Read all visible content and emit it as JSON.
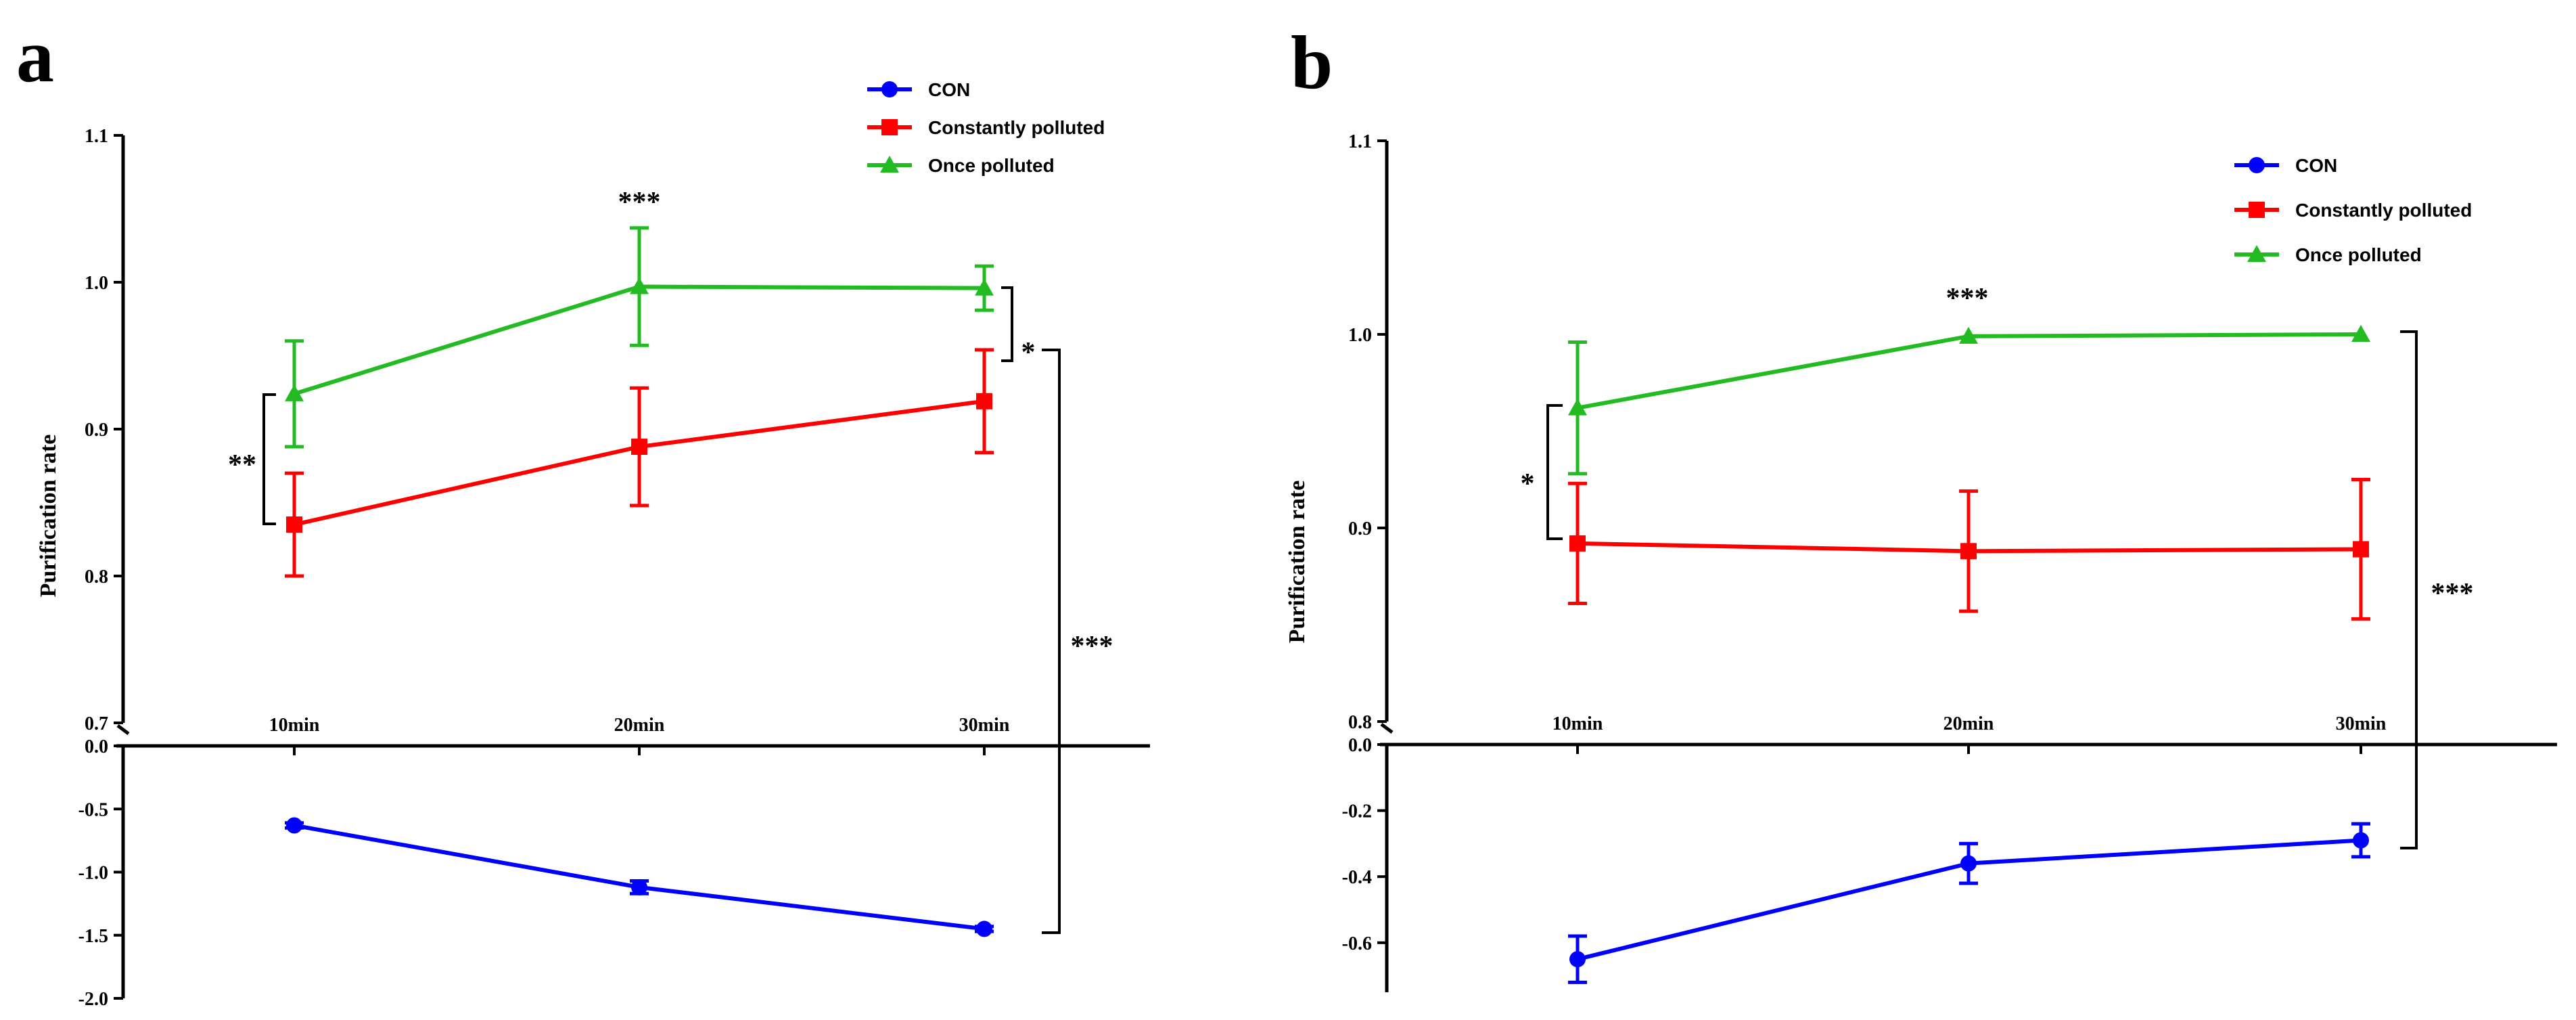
{
  "chart_data": [
    {
      "type": "line",
      "panel_label": "a",
      "title": "",
      "xlabel": "",
      "ylabel": "Purification rate",
      "categories": [
        "10min",
        "20min",
        "30min"
      ],
      "upper_axis": {
        "ylim": [
          0.7,
          1.1
        ],
        "ticks": [
          0.7,
          0.8,
          0.9,
          1.0,
          1.1
        ],
        "tick_labels": [
          "0.7",
          "0.8",
          "0.9",
          "1.0",
          "1.1"
        ]
      },
      "lower_axis": {
        "ylim": [
          -2.0,
          0.0
        ],
        "ticks": [
          0.0,
          -0.5,
          -1.0,
          -1.5,
          -2.0
        ],
        "tick_labels": [
          "0.0",
          "-0.5",
          "-1.0",
          "-1.5",
          "-2.0"
        ]
      },
      "series": [
        {
          "name": "CON",
          "color": "#0000ff",
          "marker": "circle",
          "values": [
            -0.63,
            -1.12,
            -1.45
          ],
          "errors": [
            0.02,
            0.05,
            0.02
          ]
        },
        {
          "name": "Constantly polluted",
          "color": "#ff0000",
          "marker": "square",
          "values": [
            0.835,
            0.888,
            0.919
          ],
          "errors": [
            0.035,
            0.04,
            0.035
          ]
        },
        {
          "name": "Once polluted",
          "color": "#22bb22",
          "marker": "triangle",
          "values": [
            0.924,
            0.997,
            0.996
          ],
          "errors": [
            0.036,
            0.04,
            0.015
          ]
        }
      ],
      "legend_position": "top-right",
      "annotations": [
        {
          "text": "**"
        },
        {
          "text": "***"
        },
        {
          "text": "*"
        },
        {
          "text": "***"
        }
      ]
    },
    {
      "type": "line",
      "panel_label": "b",
      "title": "",
      "xlabel": "",
      "ylabel": "Purification rate",
      "categories": [
        "10min",
        "20min",
        "30min"
      ],
      "upper_axis": {
        "ylim": [
          0.8,
          1.1
        ],
        "ticks": [
          0.8,
          0.9,
          1.0,
          1.1
        ],
        "tick_labels": [
          "0.8",
          "0.9",
          "1.0",
          "1.1"
        ]
      },
      "lower_axis": {
        "ylim": [
          -0.75,
          0.0
        ],
        "ticks": [
          0.0,
          -0.2,
          -0.4,
          -0.6
        ],
        "tick_labels": [
          "0.0",
          "-0.2",
          "-0.4",
          "-0.6"
        ]
      },
      "series": [
        {
          "name": "CON",
          "color": "#0000ff",
          "marker": "circle",
          "values": [
            -0.65,
            -0.36,
            -0.29
          ],
          "errors": [
            0.07,
            0.06,
            0.05
          ]
        },
        {
          "name": "Constantly polluted",
          "color": "#ff0000",
          "marker": "square",
          "values": [
            0.892,
            0.888,
            0.889
          ],
          "errors": [
            0.031,
            0.031,
            0.036
          ]
        },
        {
          "name": "Once polluted",
          "color": "#22bb22",
          "marker": "triangle",
          "values": [
            0.962,
            0.999,
            1.0
          ],
          "errors": [
            0.034,
            0.0,
            0.0
          ]
        }
      ],
      "legend_position": "top-right",
      "annotations": [
        {
          "text": "*"
        },
        {
          "text": "***"
        },
        {
          "text": "***"
        }
      ]
    }
  ]
}
